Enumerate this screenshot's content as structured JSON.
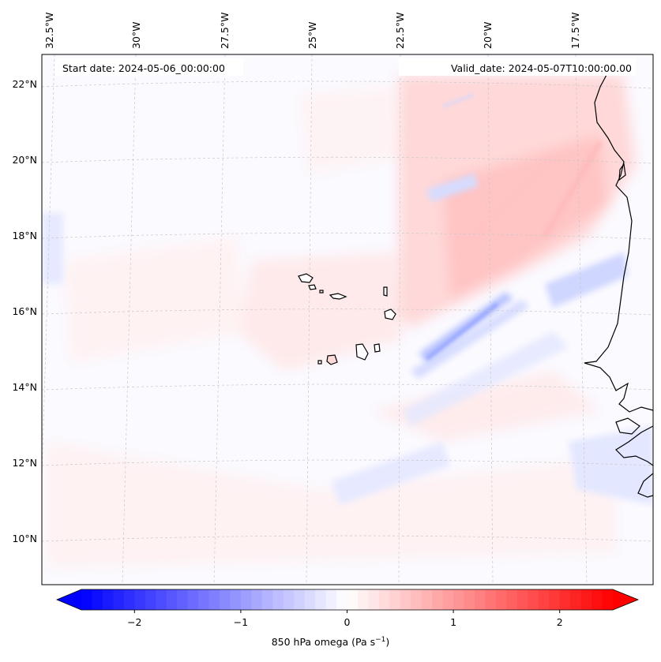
{
  "header": {
    "start_date": "Start date: 2024-05-06_00:00:00",
    "valid_date": "Valid_date: 2024-05-07T10:00:00.00"
  },
  "lon_labels": [
    "32.5°W",
    "30°W",
    "27.5°W",
    "25°W",
    "22.5°W",
    "20°W",
    "17.5°W"
  ],
  "lat_labels": [
    "22°N",
    "20°N",
    "18°N",
    "16°N",
    "14°N",
    "12°N",
    "10°N"
  ],
  "colorbar": {
    "ticks": [
      "−2",
      "−1",
      "0",
      "1",
      "2"
    ],
    "tick_values": [
      -2,
      -1,
      0,
      1,
      2
    ],
    "range": [
      -2.5,
      2.5
    ],
    "label_main": "850 hPa omega (Pa s",
    "label_sup": "−1",
    "label_end": ")",
    "colors": {
      "low": "#0000ff",
      "mid": "#ffffff",
      "high": "#ff0000"
    }
  }
}
